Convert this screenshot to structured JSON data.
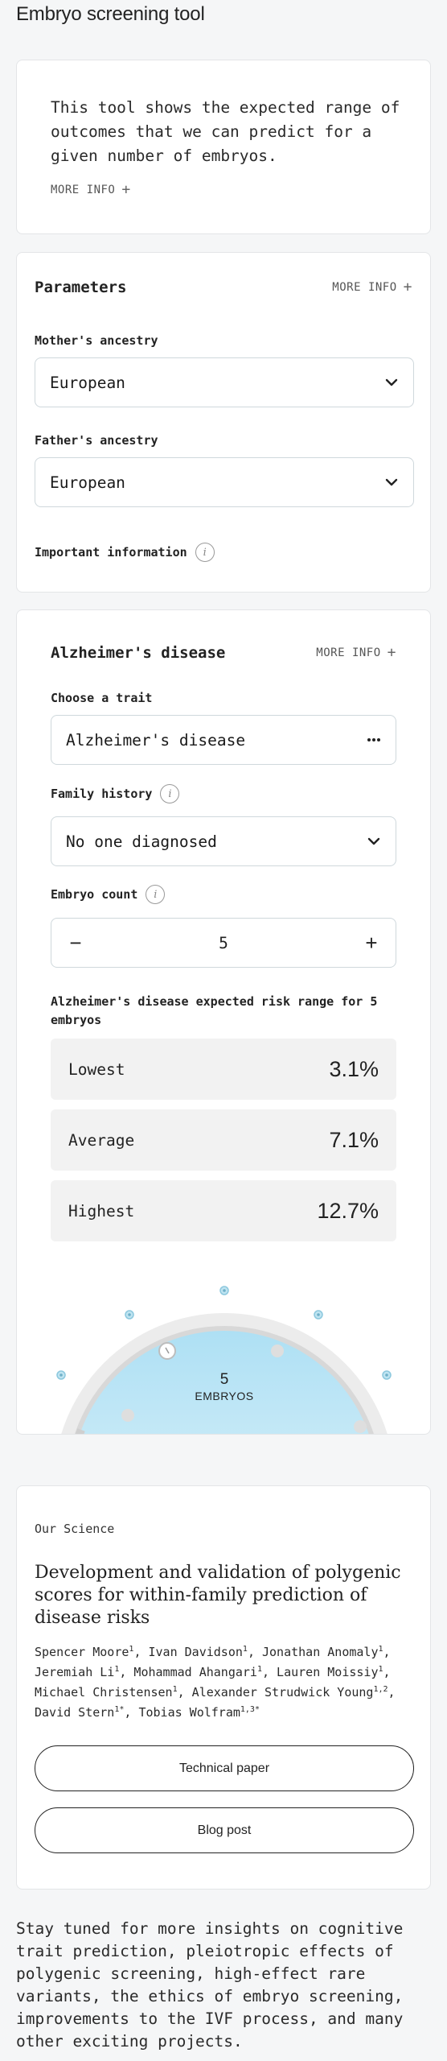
{
  "app": {
    "title": "Embryo screening tool"
  },
  "intro": {
    "text": "This tool shows the expected range of outcomes that we can predict for a given number of embryos.",
    "more_info": "MORE INFO"
  },
  "parameters": {
    "title": "Parameters",
    "more_info": "MORE INFO",
    "mother_label": "Mother's ancestry",
    "mother_value": "European",
    "father_label": "Father's ancestry",
    "father_value": "European",
    "important_info": "Important information"
  },
  "trait": {
    "title": "Alzheimer's disease",
    "more_info": "MORE INFO",
    "choose_label": "Choose a trait",
    "choose_value": "Alzheimer's disease",
    "family_label": "Family history",
    "family_value": "No one diagnosed",
    "embryo_label": "Embryo count",
    "embryo_count": "5",
    "minus": "−",
    "plus": "+",
    "range_heading": "Alzheimer's disease expected risk range for 5 embryos",
    "results": [
      {
        "label": "Lowest",
        "value": "3.1%"
      },
      {
        "label": "Average",
        "value": "7.1%"
      },
      {
        "label": "Highest",
        "value": "12.7%"
      }
    ],
    "gauge_count": "5",
    "gauge_unit": "EMBRYOS"
  },
  "science": {
    "eyebrow": "Our Science",
    "title": "Development and validation of polygenic scores for within-family prediction of disease risks",
    "technical_paper": "Technical paper",
    "blog_post": "Blog post"
  },
  "outro": {
    "text": "Stay tuned for more insights on cognitive trait prediction, pleiotropic effects of polygenic screening, high-effect rare variants, the ethics of embryo screening, improvements to the IVF process, and many other exciting projects."
  },
  "colors": {
    "gauge_fill": "#b8e3f5",
    "marker": "#8cc8de",
    "track": "#ececec"
  }
}
